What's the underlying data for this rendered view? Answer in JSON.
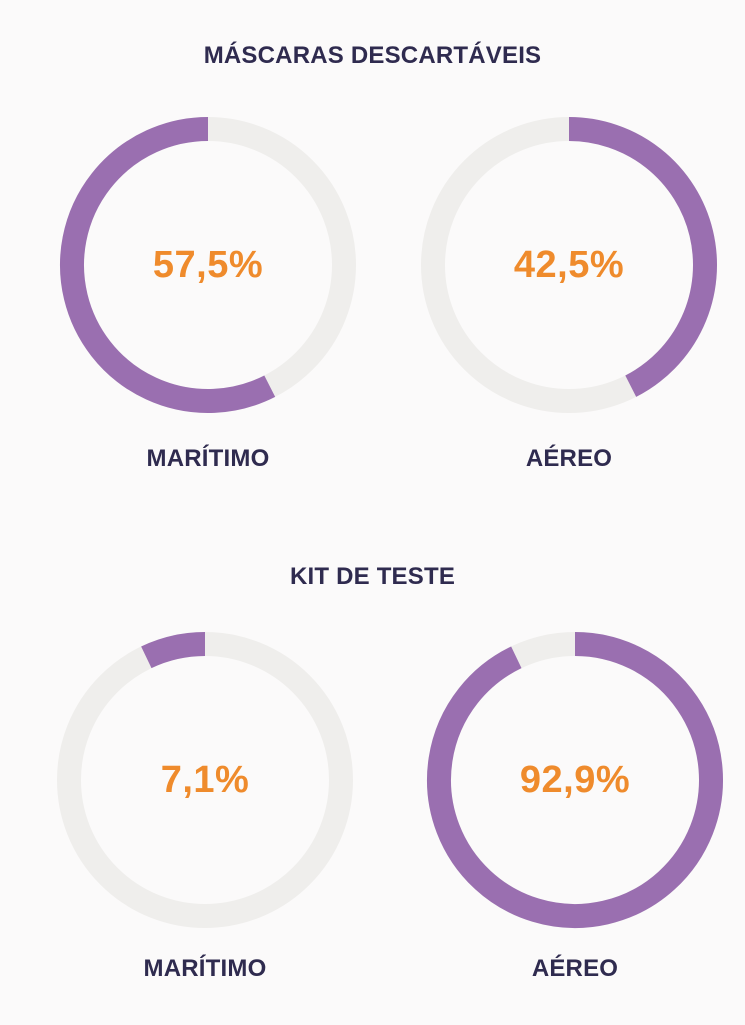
{
  "colors": {
    "background": "#fbfafa",
    "title": "#2f2b4f",
    "accent_purple": "#9a6fb0",
    "track_gray": "#efeeec",
    "percent_orange": "#ef8b2c"
  },
  "chart_data": [
    {
      "type": "donut",
      "title": "MÁSCARAS DESCARTÁVEIS",
      "series": [
        {
          "name": "MARÍTIMO",
          "value": 57.5,
          "label": "57,5%",
          "fill_start": "top",
          "direction": "counterclockwise"
        },
        {
          "name": "AÉREO",
          "value": 42.5,
          "label": "42,5%",
          "fill_start": "top",
          "direction": "clockwise"
        }
      ]
    },
    {
      "type": "donut",
      "title": "KIT DE TESTE",
      "series": [
        {
          "name": "MARÍTIMO",
          "value": 7.1,
          "label": "7,1%",
          "fill_start": "top",
          "direction": "counterclockwise"
        },
        {
          "name": "AÉREO",
          "value": 92.9,
          "label": "92,9%",
          "fill_start": "top",
          "direction": "clockwise"
        }
      ]
    }
  ]
}
